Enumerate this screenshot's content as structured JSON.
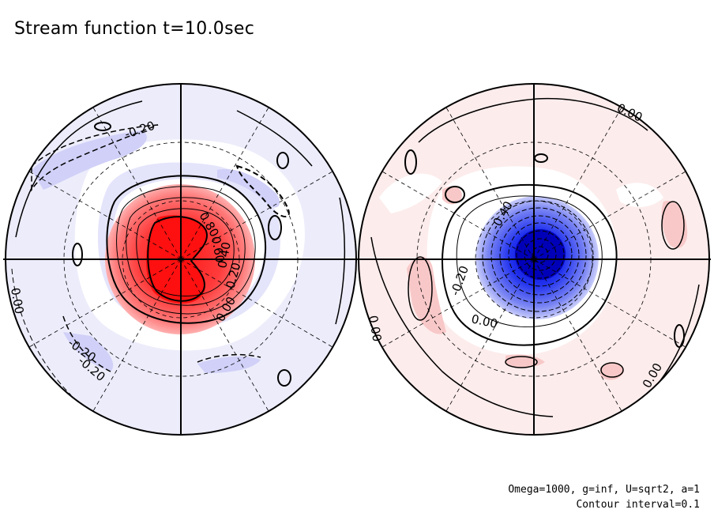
{
  "title": "Stream function t=10.0sec",
  "footer": {
    "params": "Omega=1000, g=inf, U=sqrt2, a=1",
    "contour_interval": "Contour interval=0.1"
  },
  "colors": {
    "positive": "#ff3b3b",
    "positive_light": "#fde6e6",
    "negative": "#1f2fe0",
    "negative_light": "#e8e8fb"
  },
  "chart_data": [
    {
      "type": "heatmap",
      "projection": "polar-stereographic",
      "hemisphere": "left",
      "contour_interval": 0.1,
      "center_extremum": 1.0,
      "contour_labels": [
        "0.80",
        "0.60",
        "0.40",
        "0.20",
        "0.00",
        "-0.20",
        "-0.20",
        "-0.20",
        "0.00"
      ],
      "background_sign": "negative"
    },
    {
      "type": "heatmap",
      "projection": "polar-stereographic",
      "hemisphere": "right",
      "contour_interval": 0.1,
      "center_extremum": -1.0,
      "contour_labels": [
        "-0.40",
        "-0.20",
        "0.00",
        "0.00",
        "0.00",
        "0.00"
      ],
      "background_sign": "positive"
    }
  ]
}
